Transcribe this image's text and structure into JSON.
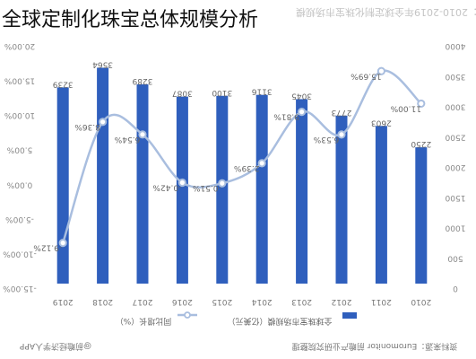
{
  "page": {
    "title": "全球定制化珠宝总体规模分析",
    "chart_heading": "图表1：2010-2019年全球定制化珠宝市场规模",
    "source": "资料来源：Euromonitor 前瞻产业研究院整理",
    "brand": "@前瞻经济学人APP"
  },
  "colors": {
    "bar": "#2f5fbd",
    "line": "#a9bedf",
    "marker_fill": "#ffffff"
  },
  "chart_data": {
    "type": "bar",
    "orientation": "rotated-180",
    "categories": [
      "2019",
      "2018",
      "2017",
      "2016",
      "2015",
      "2014",
      "2013",
      "2012",
      "2011",
      "2010"
    ],
    "series": [
      {
        "name": "全球珠宝市场规模（亿美元）",
        "type": "bar",
        "values": [
          3239,
          3564,
          3289,
          3087,
          3100,
          3116,
          3045,
          2773,
          2603,
          2250
        ],
        "labels": [
          "3239",
          "3564",
          "3289",
          "3087",
          "3100",
          "3116",
          "3045",
          "2773",
          "2603",
          "2250"
        ]
      },
      {
        "name": "同比增长（%）",
        "type": "line",
        "values": [
          -9.12,
          8.36,
          6.54,
          -0.42,
          -0.51,
          2.39,
          9.81,
          6.53,
          15.69,
          11.0
        ],
        "labels": [
          "-9.12%",
          "8.36%",
          "6.54%",
          "-0.42%",
          "-0.51%",
          "2.39%",
          "9.81%",
          "6.53%",
          "15.69%",
          "11.00%"
        ]
      }
    ],
    "y_left": {
      "range": [
        -15,
        20
      ],
      "ticks": [
        "20.00%",
        "15.00%",
        "10.00%",
        "5.00%",
        "0.00%",
        "-5.00%",
        "-10.00%",
        "-15.00%"
      ]
    },
    "y_right": {
      "range": [
        0,
        4000
      ],
      "ticks": [
        "4000",
        "3500",
        "3000",
        "2500",
        "2000",
        "1500",
        "1000",
        "500",
        "0"
      ]
    },
    "grid": false,
    "legend_position": "bottom"
  }
}
